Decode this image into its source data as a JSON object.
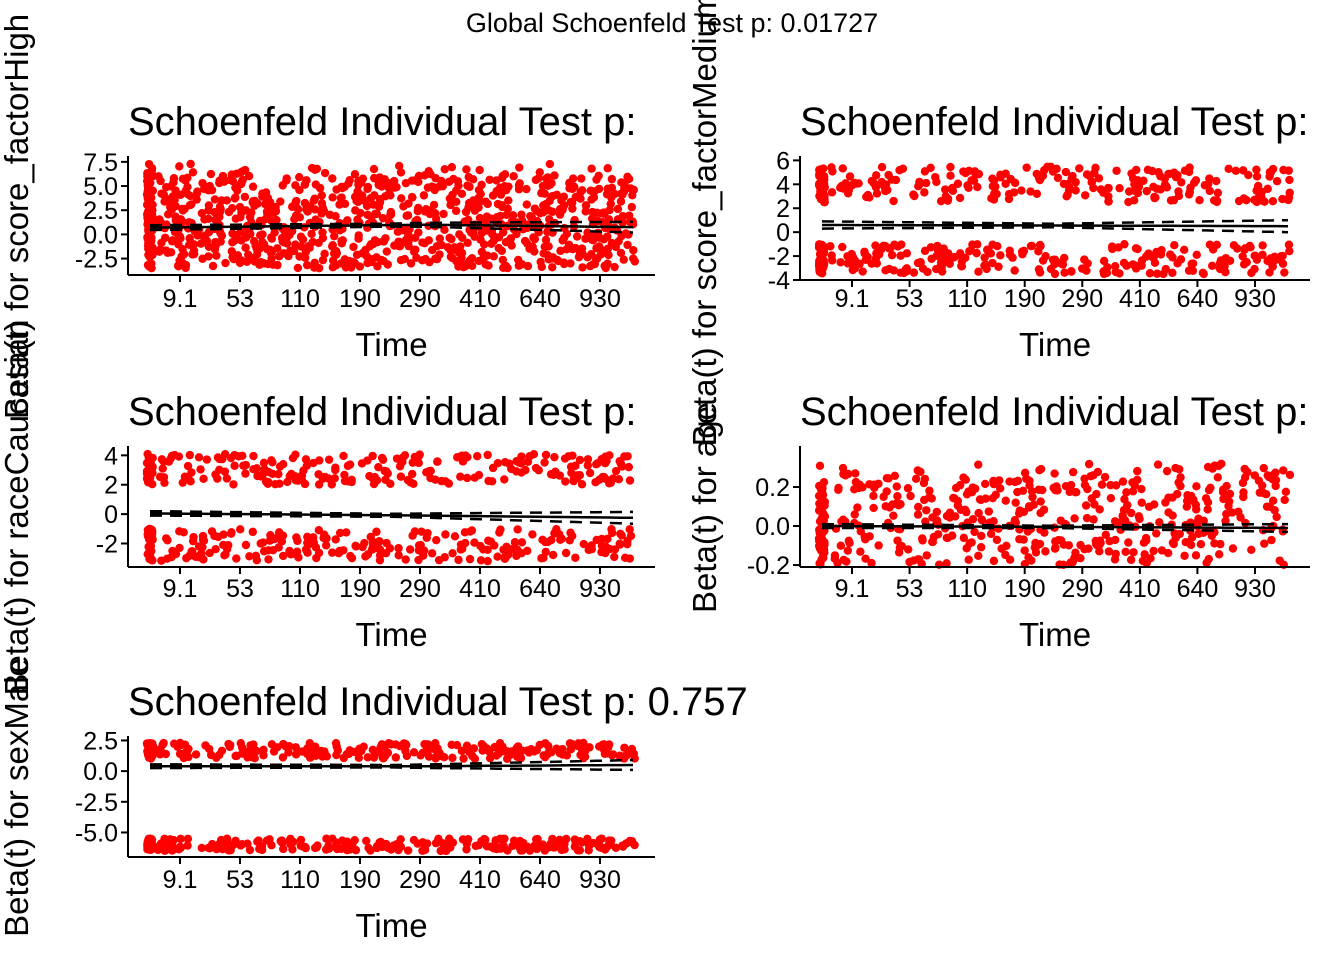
{
  "global_title": "Global Schoenfeld Test p: 0.01727",
  "colors": {
    "points": "#ff0000",
    "lines": "#000000",
    "background": "#ffffff"
  },
  "chart_data": [
    {
      "type": "scatter",
      "title": "Schoenfeld Individual Test p:",
      "xlabel": "Time",
      "ylabel": "Beta(t) for score_factorHigh",
      "x_ticks": [
        "9.1",
        "53",
        "110",
        "190",
        "290",
        "410",
        "640",
        "930"
      ],
      "y_ticks": [
        -2.5,
        0.0,
        2.5,
        5.0,
        7.5
      ],
      "y_tick_labels": [
        "-2.5",
        "0.0",
        "2.5",
        "5.0",
        "7.5"
      ],
      "ylim": [
        -4.2,
        7.9
      ],
      "point_bands": [
        [
          -3.5,
          5.8
        ],
        [
          -3.5,
          5.8
        ],
        [
          -3.5,
          6.5
        ],
        [
          -3.5,
          7.3
        ]
      ],
      "smooth_fit": [
        [
          0,
          0.7
        ],
        [
          4,
          1.0
        ],
        [
          7,
          0.75
        ]
      ],
      "ci_halfwidth": [
        0.25,
        0.15,
        0.55
      ],
      "grid": false,
      "legend": "none"
    },
    {
      "type": "scatter",
      "title": "Schoenfeld Individual Test p:",
      "xlabel": "Time",
      "ylabel": "Beta(t) for score_factorMedium",
      "x_ticks": [
        "9.1",
        "53",
        "110",
        "190",
        "290",
        "410",
        "640",
        "930"
      ],
      "y_ticks": [
        -4,
        -2,
        0,
        2,
        4,
        6
      ],
      "y_tick_labels": [
        "-4",
        "-2",
        "0",
        "2",
        "4",
        "6"
      ],
      "ylim": [
        -4,
        6.2
      ],
      "point_bands": [
        [
          2.5,
          5.5
        ],
        [
          -3.5,
          -1.0
        ]
      ],
      "smooth_fit": [
        [
          0,
          0.6
        ],
        [
          4,
          0.55
        ],
        [
          7,
          0.5
        ]
      ],
      "ci_halfwidth": [
        0.3,
        0.15,
        0.5
      ],
      "grid": false,
      "legend": "none"
    },
    {
      "type": "scatter",
      "title": "Schoenfeld Individual Test p:",
      "xlabel": "Time",
      "ylabel": "Beta(t) for raceCaucasian",
      "x_ticks": [
        "9.1",
        "53",
        "110",
        "190",
        "290",
        "410",
        "640",
        "930"
      ],
      "y_ticks": [
        -2,
        0,
        2,
        4
      ],
      "y_tick_labels": [
        "-2",
        "0",
        "2",
        "4"
      ],
      "ylim": [
        -3.6,
        4.5
      ],
      "point_bands": [
        [
          2.0,
          4.1
        ],
        [
          -3.2,
          -1.0
        ]
      ],
      "smooth_fit": [
        [
          0,
          0.05
        ],
        [
          4,
          -0.1
        ],
        [
          7,
          -0.25
        ]
      ],
      "ci_halfwidth": [
        0.15,
        0.1,
        0.4
      ],
      "grid": false,
      "legend": "none"
    },
    {
      "type": "scatter",
      "title": "Schoenfeld Individual Test p:",
      "xlabel": "Time",
      "ylabel": "Beta(t) for age",
      "x_ticks": [
        "9.1",
        "53",
        "110",
        "190",
        "290",
        "410",
        "640",
        "930"
      ],
      "y_ticks": [
        -0.2,
        0.0,
        0.2
      ],
      "y_tick_labels": [
        "-0.2",
        "0.0",
        "0.2"
      ],
      "ylim": [
        -0.21,
        0.4
      ],
      "point_bands": [
        [
          -0.2,
          0.28
        ],
        [
          -0.2,
          0.32
        ]
      ],
      "smooth_fit": [
        [
          0,
          0.0
        ],
        [
          4,
          -0.005
        ],
        [
          7,
          -0.01
        ]
      ],
      "ci_halfwidth": [
        0.01,
        0.006,
        0.02
      ],
      "grid": false,
      "legend": "none"
    },
    {
      "type": "scatter",
      "title": "Schoenfeld Individual Test p: 0.757",
      "xlabel": "Time",
      "ylabel": "Beta(t) for sexMale",
      "x_ticks": [
        "9.1",
        "53",
        "110",
        "190",
        "290",
        "410",
        "640",
        "930"
      ],
      "y_ticks": [
        -5.0,
        -2.5,
        0.0,
        2.5
      ],
      "y_tick_labels": [
        "-5.0",
        "-2.5",
        "0.0",
        "2.5"
      ],
      "ylim": [
        -7.0,
        2.7
      ],
      "point_bands": [
        [
          1.0,
          2.3
        ],
        [
          -6.5,
          -5.5
        ]
      ],
      "smooth_fit": [
        [
          0,
          0.4
        ],
        [
          4,
          0.4
        ],
        [
          7,
          0.5
        ]
      ],
      "ci_halfwidth": [
        0.15,
        0.1,
        0.4
      ],
      "grid": false,
      "legend": "none"
    }
  ]
}
